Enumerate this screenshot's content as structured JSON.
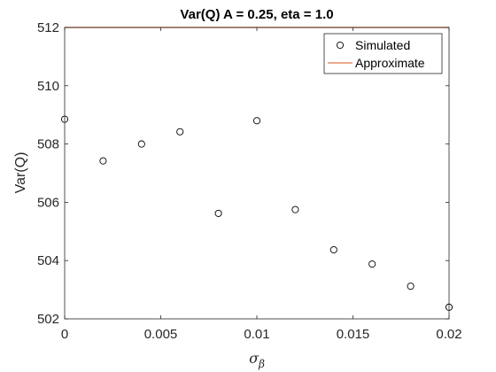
{
  "chart_data": {
    "type": "scatter",
    "title": "Var(Q) A = 0.25, eta = 1.0",
    "xlabel": "σ",
    "xlabel_subscript": "β",
    "ylabel": "Var(Q)",
    "xlim": [
      0,
      0.02
    ],
    "ylim": [
      502,
      512
    ],
    "x_ticks": [
      0,
      0.005,
      0.01,
      0.015,
      0.02
    ],
    "x_tick_labels": [
      "0",
      "0.005",
      "0.01",
      "0.015",
      "0.02"
    ],
    "y_ticks": [
      502,
      504,
      506,
      508,
      510,
      512
    ],
    "y_tick_labels": [
      "502",
      "504",
      "506",
      "508",
      "510",
      "512"
    ],
    "grid": false,
    "legend_position": "top-right",
    "series": [
      {
        "name": "Simulated",
        "kind": "markers",
        "marker": "circle",
        "color": "#000000",
        "x": [
          0,
          0.002,
          0.004,
          0.006,
          0.008,
          0.01,
          0.012,
          0.014,
          0.016,
          0.018,
          0.02
        ],
        "y": [
          508.85,
          507.42,
          508.0,
          508.42,
          505.62,
          508.8,
          505.75,
          504.37,
          503.88,
          503.12,
          502.4
        ]
      },
      {
        "name": "Approximate",
        "kind": "line",
        "color": "#D95319",
        "x": [
          0,
          0.02
        ],
        "y": [
          512,
          512
        ]
      }
    ]
  }
}
